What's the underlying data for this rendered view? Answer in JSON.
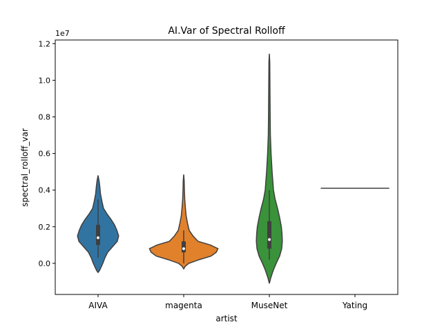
{
  "chart_data": {
    "type": "violin",
    "title": "AI.Var of Spectral Rolloff",
    "xlabel": "artist",
    "ylabel": "spectral_rolloff_var",
    "y_multiplier_label": "1e7",
    "ylim": [
      -0.17,
      1.22
    ],
    "yticks": [
      0.0,
      0.2,
      0.4,
      0.6,
      0.8,
      1.0,
      1.2
    ],
    "ytick_labels": [
      "0.0",
      "0.2",
      "0.4",
      "0.6",
      "0.8",
      "1.0",
      "1.2"
    ],
    "grid": false,
    "categories": [
      "AIVA",
      "magenta",
      "MuseNet",
      "Yating"
    ],
    "colors": [
      "#3274a1",
      "#e1812c",
      "#3a923a",
      "#c03d3e"
    ],
    "violins": [
      {
        "category": "AIVA",
        "color": "#3274a1",
        "min": 0.03,
        "q1": 0.1,
        "median": 0.14,
        "q3": 0.21,
        "max": 0.35,
        "profile": [
          [
            -0.05,
            0.0
          ],
          [
            -0.04,
            0.04
          ],
          [
            -0.02,
            0.09
          ],
          [
            0.0,
            0.14
          ],
          [
            0.03,
            0.2
          ],
          [
            0.06,
            0.28
          ],
          [
            0.09,
            0.42
          ],
          [
            0.12,
            0.56
          ],
          [
            0.15,
            0.6
          ],
          [
            0.18,
            0.55
          ],
          [
            0.21,
            0.48
          ],
          [
            0.24,
            0.38
          ],
          [
            0.27,
            0.26
          ],
          [
            0.3,
            0.16
          ],
          [
            0.34,
            0.11
          ],
          [
            0.38,
            0.07
          ],
          [
            0.42,
            0.05
          ],
          [
            0.45,
            0.03
          ],
          [
            0.48,
            0.0
          ]
        ]
      },
      {
        "category": "magenta",
        "color": "#e1812c",
        "min": 0.0,
        "q1": 0.06,
        "median": 0.08,
        "q3": 0.12,
        "max": 0.18,
        "profile": [
          [
            -0.03,
            0.0
          ],
          [
            -0.015,
            0.05
          ],
          [
            0.0,
            0.15
          ],
          [
            0.02,
            0.45
          ],
          [
            0.04,
            0.8
          ],
          [
            0.06,
            0.95
          ],
          [
            0.08,
            1.0
          ],
          [
            0.1,
            0.78
          ],
          [
            0.12,
            0.42
          ],
          [
            0.15,
            0.27
          ],
          [
            0.18,
            0.16
          ],
          [
            0.22,
            0.11
          ],
          [
            0.26,
            0.07
          ],
          [
            0.3,
            0.05
          ],
          [
            0.35,
            0.03
          ],
          [
            0.4,
            0.02
          ],
          [
            0.45,
            0.015
          ],
          [
            0.485,
            0.0
          ]
        ]
      },
      {
        "category": "MuseNet",
        "color": "#3a923a",
        "min": 0.02,
        "q1": 0.08,
        "median": 0.13,
        "q3": 0.23,
        "max": 0.4,
        "profile": [
          [
            -0.11,
            0.0
          ],
          [
            -0.08,
            0.04
          ],
          [
            -0.04,
            0.11
          ],
          [
            0.0,
            0.2
          ],
          [
            0.04,
            0.3
          ],
          [
            0.08,
            0.36
          ],
          [
            0.12,
            0.38
          ],
          [
            0.16,
            0.37
          ],
          [
            0.2,
            0.35
          ],
          [
            0.25,
            0.3
          ],
          [
            0.3,
            0.24
          ],
          [
            0.35,
            0.17
          ],
          [
            0.4,
            0.12
          ],
          [
            0.5,
            0.08
          ],
          [
            0.6,
            0.05
          ],
          [
            0.7,
            0.03
          ],
          [
            0.8,
            0.025
          ],
          [
            0.9,
            0.02
          ],
          [
            1.0,
            0.017
          ],
          [
            1.1,
            0.013
          ],
          [
            1.145,
            0.0
          ]
        ]
      },
      {
        "category": "Yating",
        "color": "#c03d3e",
        "single_value": 0.41
      }
    ]
  }
}
